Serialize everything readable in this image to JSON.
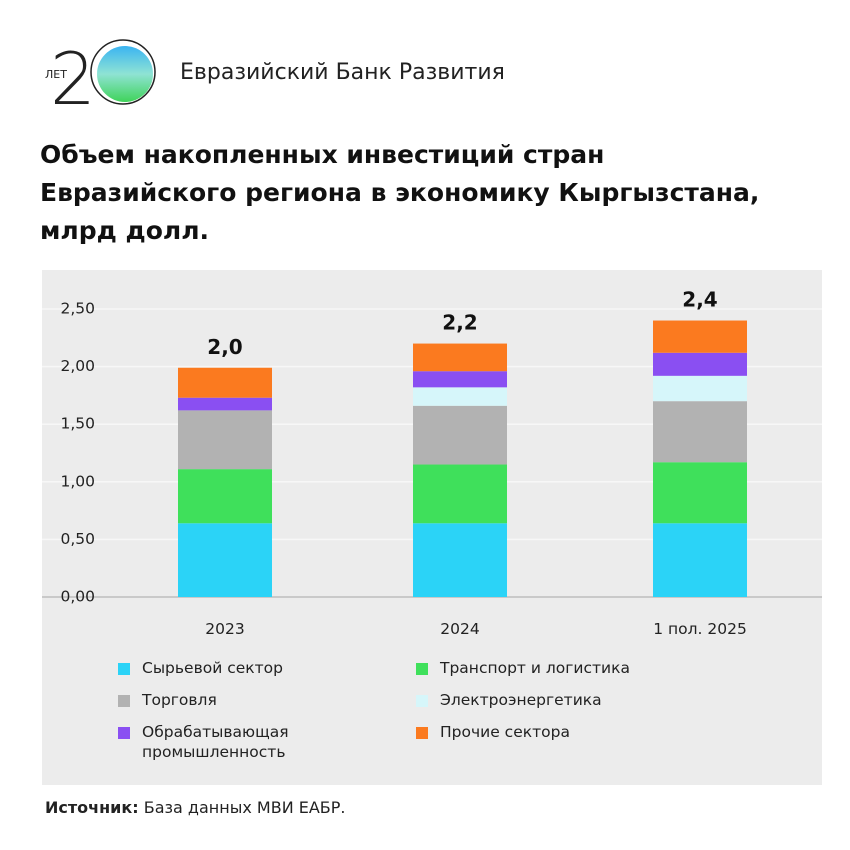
{
  "header": {
    "logo_label": "ЛЕТ",
    "logo_digit": "2",
    "org": "Евразийский Банк Развития"
  },
  "chart_data": {
    "type": "stacked-bar",
    "title": "Объем накопленных инвестиций стран Евразийского региона в экономику Кыргызстана, млрд долл.",
    "categories": [
      "2023",
      "2024",
      "1 пол. 2025"
    ],
    "series": [
      {
        "name": "Сырьевой сектор",
        "color": "#2bd3f7",
        "values": [
          0.64,
          0.64,
          0.64
        ]
      },
      {
        "name": "Транспорт и логистика",
        "color": "#3fe05b",
        "values": [
          0.47,
          0.51,
          0.53
        ]
      },
      {
        "name": "Торговля",
        "color": "#b2b2b2",
        "values": [
          0.51,
          0.51,
          0.53
        ]
      },
      {
        "name": "Электроэнергетика",
        "color": "#d6f6fa",
        "values": [
          0,
          0.16,
          0.22
        ]
      },
      {
        "name": "Обрабатывающая промышленность",
        "color": "#8a4ff2",
        "values": [
          0.11,
          0.14,
          0.2
        ]
      },
      {
        "name": "Прочие сектора",
        "color": "#fb7a1f",
        "values": [
          0.26,
          0.24,
          0.28
        ]
      }
    ],
    "totals": {
      "values": [
        2.0,
        2.2,
        2.4
      ],
      "value_labels": [
        "2,0",
        "2,2",
        "2,4"
      ]
    },
    "ylim": [
      0,
      2.5
    ],
    "yticks": [
      {
        "value": 0,
        "label": "0,00"
      },
      {
        "value": 0.5,
        "label": "0,50"
      },
      {
        "value": 1,
        "label": "1,00"
      },
      {
        "value": 1.5,
        "label": "1,50"
      },
      {
        "value": 2,
        "label": "2,00"
      },
      {
        "value": 2.5,
        "label": "2,50"
      }
    ],
    "grid": true
  },
  "source": {
    "label": "Источник:",
    "text": "База данных МВИ ЕАБР."
  }
}
